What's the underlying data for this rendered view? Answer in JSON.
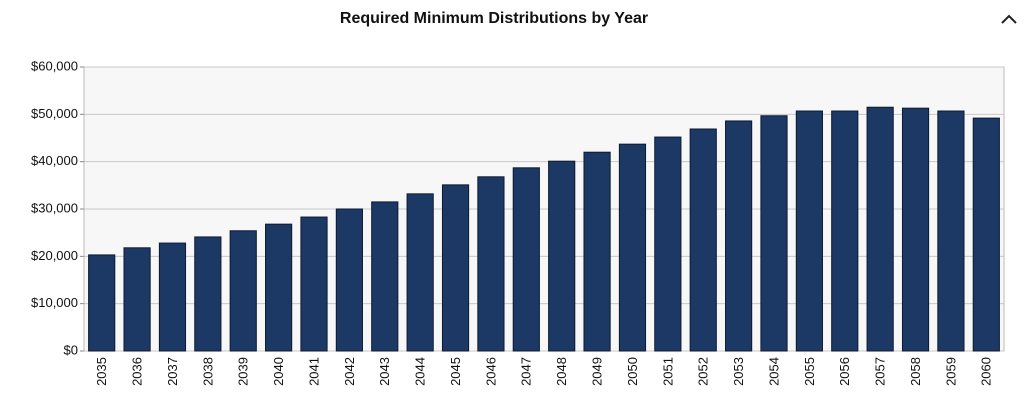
{
  "chart_data": {
    "type": "bar",
    "title": "Required Minimum Distributions by Year",
    "categories": [
      "2035",
      "2036",
      "2037",
      "2038",
      "2039",
      "2040",
      "2041",
      "2042",
      "2043",
      "2044",
      "2045",
      "2046",
      "2047",
      "2048",
      "2049",
      "2050",
      "2051",
      "2052",
      "2053",
      "2054",
      "2055",
      "2056",
      "2057",
      "2058",
      "2059",
      "2060"
    ],
    "values": [
      20300,
      21800,
      22800,
      24100,
      25400,
      26800,
      28300,
      30000,
      31500,
      33200,
      35100,
      36800,
      38700,
      40100,
      42000,
      43700,
      45200,
      46900,
      48600,
      49700,
      50700,
      50700,
      51500,
      51300,
      50700,
      49200
    ],
    "color": "#1c3966",
    "ylim": [
      0,
      60000
    ],
    "yticks": [
      {
        "value": 0,
        "label": "$0"
      },
      {
        "value": 10000,
        "label": "$10,000"
      },
      {
        "value": 20000,
        "label": "$20,000"
      },
      {
        "value": 30000,
        "label": "$30,000"
      },
      {
        "value": 40000,
        "label": "$40,000"
      },
      {
        "value": 50000,
        "label": "$50,000"
      },
      {
        "value": 60000,
        "label": "$60,000"
      }
    ],
    "grid": true
  }
}
